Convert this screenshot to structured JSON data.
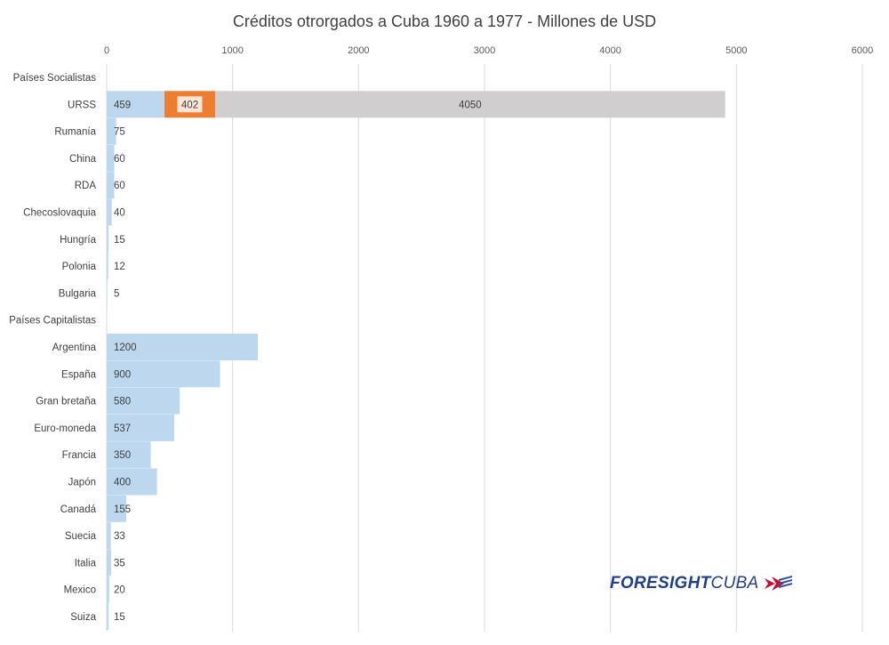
{
  "chart_data": {
    "type": "bar",
    "orientation": "horizontal",
    "stacked": true,
    "title": "Créditos otrorgados a Cuba 1960 a 1977 - Millones de USD",
    "xlim": [
      0,
      6000
    ],
    "x_ticks": [
      "0",
      "1000",
      "2000",
      "3000",
      "4000",
      "5000",
      "6000"
    ],
    "grid": true,
    "legend": "none",
    "categories": [
      "Países Socialistas",
      "URSS",
      "Rumanía",
      "China",
      "RDA",
      "Checoslovaquia",
      "Hungría",
      "Polonia",
      "Bulgaria",
      "Países Capitalistas",
      "Argentina",
      "España",
      "Gran bretaña",
      "Euro-moneda",
      "Francia",
      "Japón",
      "Canadá",
      "Suecia",
      "Italia",
      "Mexico",
      "Suiza"
    ],
    "series": [
      {
        "color": "#bdd7ee",
        "values": [
          null,
          459,
          75,
          60,
          60,
          40,
          15,
          12,
          5,
          null,
          1200,
          900,
          580,
          537,
          350,
          400,
          155,
          33,
          35,
          20,
          15
        ]
      },
      {
        "color": "#ed7d31",
        "values": [
          null,
          402,
          null,
          null,
          null,
          null,
          null,
          null,
          null,
          null,
          null,
          null,
          null,
          null,
          null,
          null,
          null,
          null,
          null,
          null,
          null
        ]
      },
      {
        "color": "#d0cece",
        "values": [
          null,
          4050,
          null,
          null,
          null,
          null,
          null,
          null,
          null,
          null,
          null,
          null,
          null,
          null,
          null,
          null,
          null,
          null,
          null,
          null,
          null
        ]
      }
    ],
    "data_labels": [
      [
        null,
        "459",
        "75",
        "60",
        "60",
        "40",
        "15",
        "12",
        "5",
        null,
        "1200",
        "900",
        "580",
        "537",
        "350",
        "400",
        "155",
        "33",
        "35",
        "20",
        "15"
      ],
      [
        null,
        "402",
        null,
        null,
        null,
        null,
        null,
        null,
        null,
        null,
        null,
        null,
        null,
        null,
        null,
        null,
        null,
        null,
        null,
        null,
        null
      ],
      [
        null,
        "4050",
        null,
        null,
        null,
        null,
        null,
        null,
        null,
        null,
        null,
        null,
        null,
        null,
        null,
        null,
        null,
        null,
        null,
        null,
        null
      ]
    ]
  },
  "logo": {
    "bold": "FORESIGHT",
    "light": "CUBA",
    "icon": "chevron-arrows-icon",
    "colors": {
      "text": "#1f3f8f",
      "red": "#c8102e",
      "blue": "#2e4fa3"
    }
  }
}
